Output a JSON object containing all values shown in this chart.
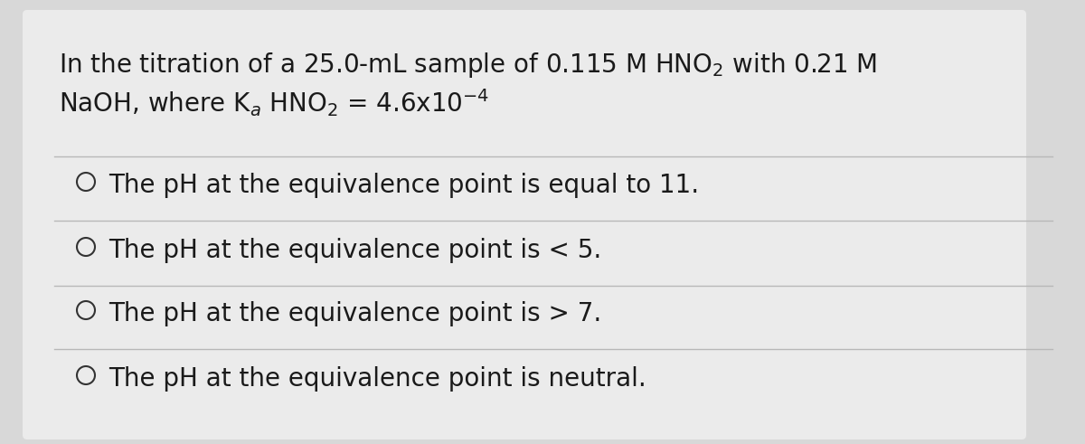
{
  "background_color": "#d8d8d8",
  "card_color": "#ebebeb",
  "options": [
    "The pH at the equivalence point is equal to 11.",
    "The pH at the equivalence point is < 5.",
    "The pH at the equivalence point is > 7.",
    "The pH at the equivalence point is neutral."
  ],
  "divider_color": "#b8b8b8",
  "text_color": "#1a1a1a",
  "circle_color": "#333333",
  "title_fontsize": 20,
  "option_fontsize": 20
}
